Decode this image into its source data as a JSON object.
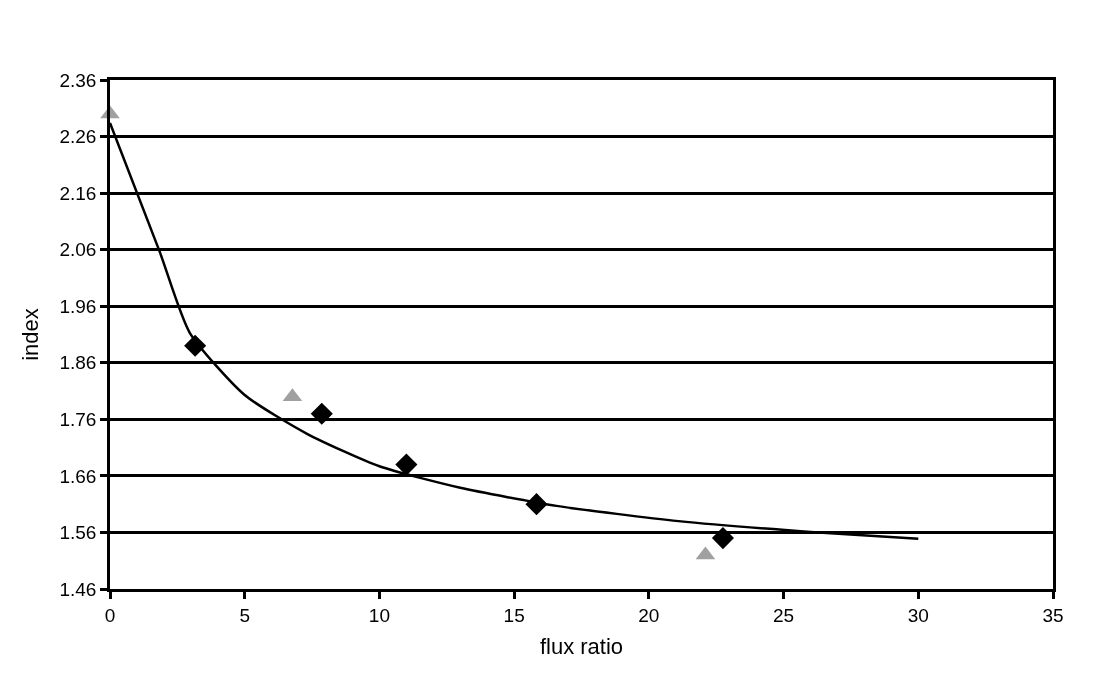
{
  "chart_data": {
    "type": "scatter",
    "xlabel": "flux ratio",
    "ylabel": "index",
    "xlim": [
      0,
      35
    ],
    "xticks": [
      0,
      5,
      10,
      15,
      20,
      25,
      30,
      35
    ],
    "ylim": [
      1.46,
      2.36
    ],
    "yticks": [
      1.46,
      1.56,
      1.66,
      1.76,
      1.86,
      1.96,
      2.06,
      2.16,
      2.26,
      2.36
    ],
    "grid": "y",
    "series": [
      {
        "type": "line",
        "color": "#000000",
        "marker": "none",
        "line_style": "solid",
        "x": [
          0,
          1.84,
          2.96,
          5.0,
          7.33,
          10.0,
          13.0,
          16.57,
          21.1,
          26.0,
          30.0
        ],
        "values": [
          2.284,
          2.057,
          1.913,
          1.803,
          1.734,
          1.677,
          1.639,
          1.607,
          1.58,
          1.561,
          1.549
        ]
      },
      {
        "color": "#000000",
        "marker": "diamond",
        "x": [
          3.16,
          7.86,
          11.0,
          15.83,
          22.75
        ],
        "values": [
          1.89,
          1.77,
          1.68,
          1.61,
          1.55
        ]
      },
      {
        "color": "#a0a0a0",
        "marker": "triangle",
        "x": [
          0,
          6.77,
          22.1
        ],
        "values": [
          2.3,
          1.8,
          1.52
        ]
      }
    ]
  }
}
